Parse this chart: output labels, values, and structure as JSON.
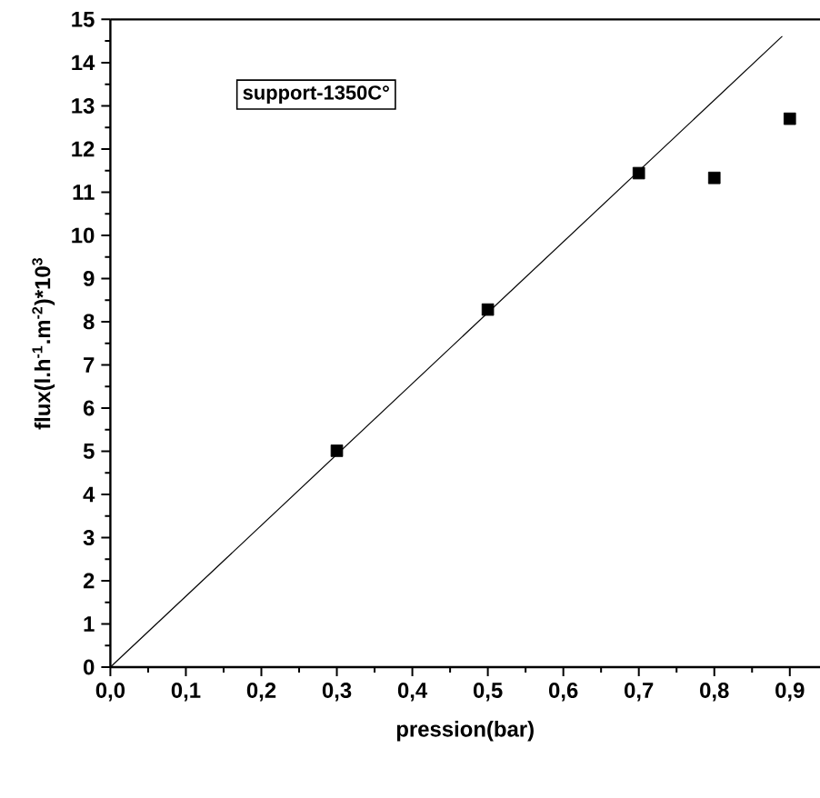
{
  "chart_data": {
    "type": "scatter",
    "xlabel": "pression(bar)",
    "ylabel": "flux(l.h$^{-1}$.m$^{-2}$)*10$^{3}$",
    "annotations": [
      "support-1350C°"
    ],
    "xlim": [
      0,
      0.94
    ],
    "ylim": [
      0,
      15
    ],
    "xticks": [
      {
        "value": 0,
        "label": "0,0"
      },
      {
        "value": 0.1,
        "label": "0,1"
      },
      {
        "value": 0.2,
        "label": "0,2"
      },
      {
        "value": 0.3,
        "label": "0,3"
      },
      {
        "value": 0.4,
        "label": "0,4"
      },
      {
        "value": 0.5,
        "label": "0,5"
      },
      {
        "value": 0.6,
        "label": "0,6"
      },
      {
        "value": 0.7,
        "label": "0,7"
      },
      {
        "value": 0.8,
        "label": "0,8"
      },
      {
        "value": 0.9,
        "label": "0,9"
      }
    ],
    "yticks": [
      0,
      1,
      2,
      3,
      4,
      5,
      6,
      7,
      8,
      9,
      10,
      11,
      12,
      13,
      14,
      15
    ],
    "grid": false,
    "series": [
      {
        "type": "scatter",
        "marker": "square",
        "color": "#000000",
        "x": [
          0.3,
          0.5,
          0.7,
          0.8,
          0.9
        ],
        "values": [
          5.01,
          8.28,
          11.44,
          11.33,
          12.7
        ]
      },
      {
        "type": "line",
        "marker": "none",
        "line_style": "solid",
        "color": "#000000",
        "x": [
          0,
          0.89
        ],
        "values": [
          0,
          14.61
        ]
      }
    ]
  }
}
